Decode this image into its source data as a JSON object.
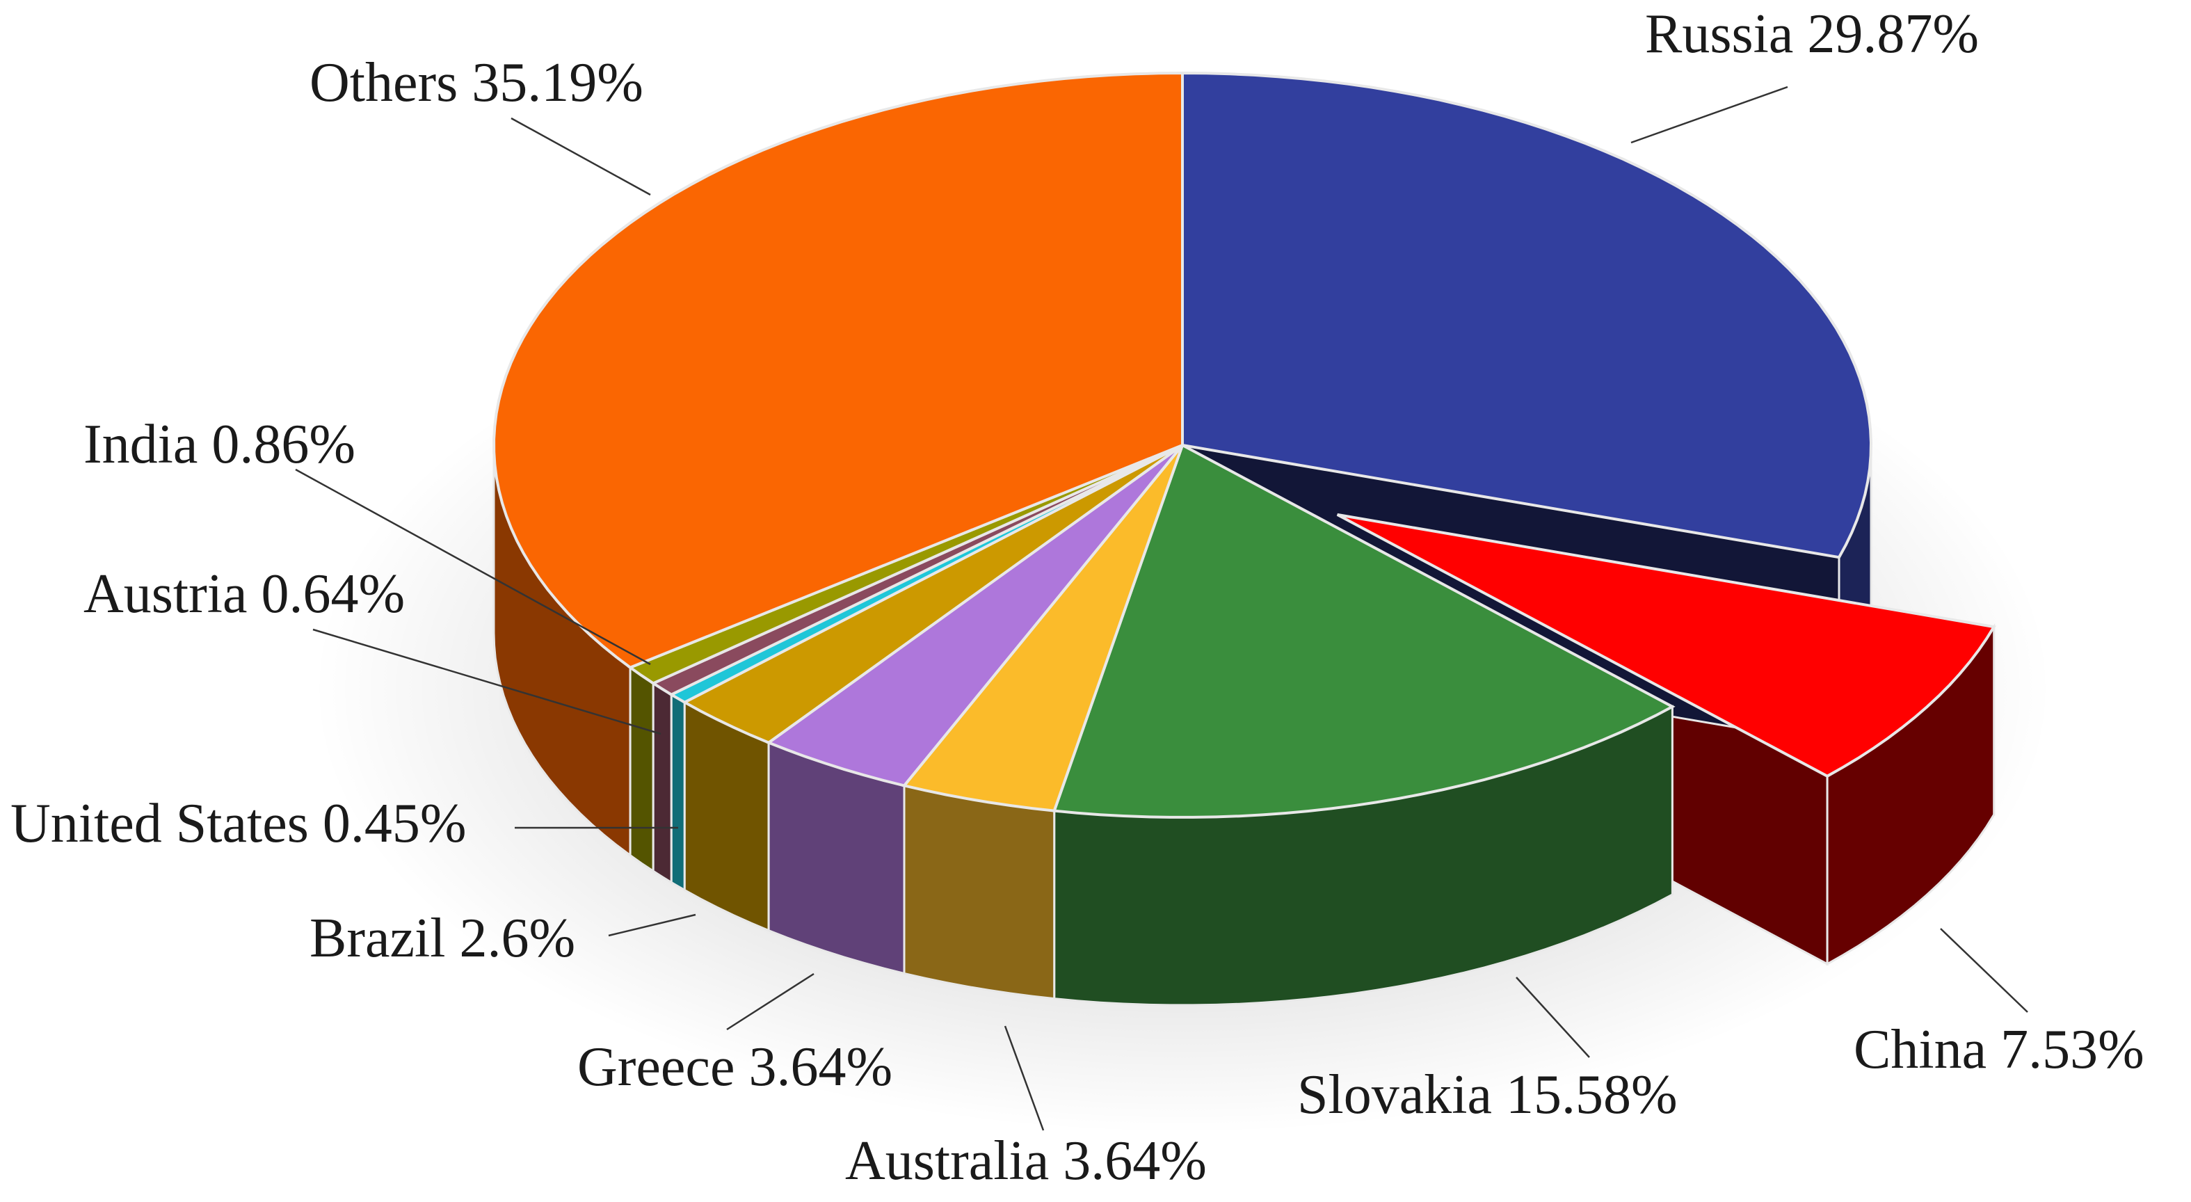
{
  "chart_data": {
    "type": "pie",
    "title": "",
    "slices": [
      {
        "label": "Russia",
        "value": 29.87,
        "value_label": "29.87%",
        "color": "#323F9E"
      },
      {
        "label": "China",
        "value": 7.53,
        "value_label": "7.53%",
        "color": "#FF0000"
      },
      {
        "label": "Slovakia",
        "value": 15.58,
        "value_label": "15.58%",
        "color": "#3A8E3D"
      },
      {
        "label": "Australia",
        "value": 3.64,
        "value_label": "3.64%",
        "color": "#FBBB2A"
      },
      {
        "label": "Greece",
        "value": 3.64,
        "value_label": "3.64%",
        "color": "#AE77DB"
      },
      {
        "label": "Brazil",
        "value": 2.6,
        "value_label": "2.6%",
        "color": "#CC9900"
      },
      {
        "label": "United States",
        "value": 0.45,
        "value_label": "0.45%",
        "color": "#1FC6D8"
      },
      {
        "label": "Austria",
        "value": 0.64,
        "value_label": "0.64%",
        "color": "#8A4A5E"
      },
      {
        "label": "India",
        "value": 0.86,
        "value_label": "0.86%",
        "color": "#999900"
      },
      {
        "label": "Others",
        "value": 35.19,
        "value_label": "35.19%",
        "color": "#FA6602"
      }
    ],
    "exploded": [
      "China"
    ],
    "style": "3d"
  }
}
